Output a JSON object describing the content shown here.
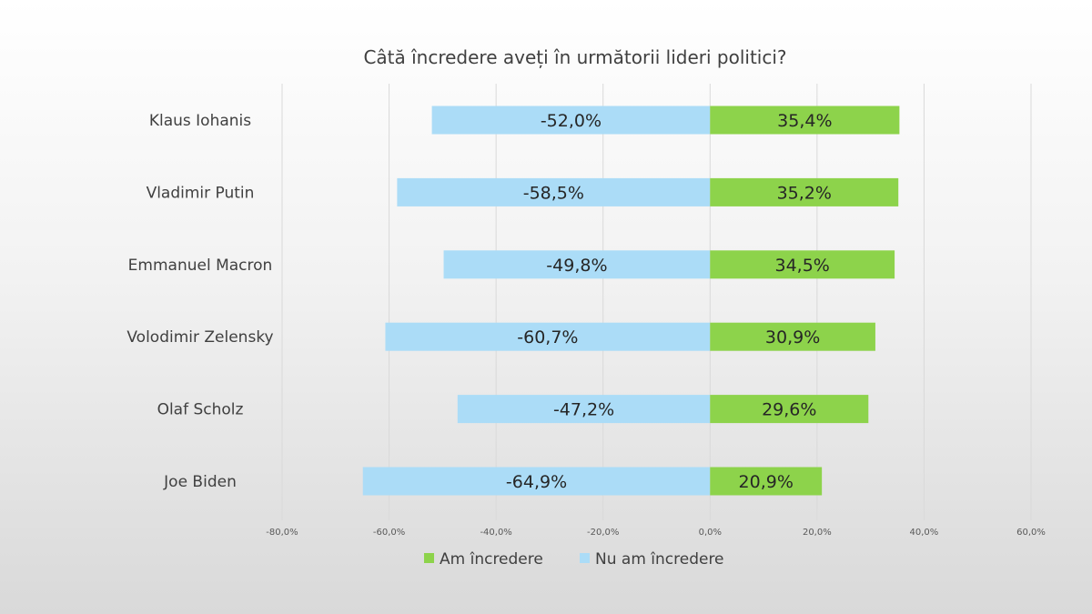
{
  "chart_data": {
    "type": "bar",
    "orientation": "horizontal",
    "stacked": "diverging",
    "title": "Câtă încredere aveți în următorii lideri politici?",
    "categories": [
      "Klaus Iohanis",
      "Vladimir Putin",
      "Emmanuel Macron",
      "Volodimir Zelensky",
      "Olaf Scholz",
      "Joe Biden"
    ],
    "series": [
      {
        "name": "Am încredere",
        "color": "#8dd34b",
        "values": [
          35.4,
          35.2,
          34.5,
          30.9,
          29.6,
          20.9
        ],
        "labels": [
          "35,4%",
          "35,2%",
          "34,5%",
          "30,9%",
          "29,6%",
          "20,9%"
        ]
      },
      {
        "name": "Nu am încredere",
        "color": "#abdcf7",
        "values": [
          -52.0,
          -58.5,
          -49.8,
          -60.7,
          -47.2,
          -64.9
        ],
        "labels": [
          "-52,0%",
          "-58,5%",
          "-49,8%",
          "-60,7%",
          "-47,2%",
          "-64,9%"
        ]
      }
    ],
    "xlim": [
      -80,
      60
    ],
    "xticks": [
      -80,
      -60,
      -40,
      -20,
      0,
      20,
      40,
      60
    ],
    "xtick_labels": [
      "-80,0%",
      "-60,0%",
      "-40,0%",
      "-20,0%",
      "0,0%",
      "20,0%",
      "40,0%",
      "60,0%"
    ],
    "grid": true,
    "legend_position": "bottom",
    "legend": [
      "Am încredere",
      "Nu am încredere"
    ]
  }
}
